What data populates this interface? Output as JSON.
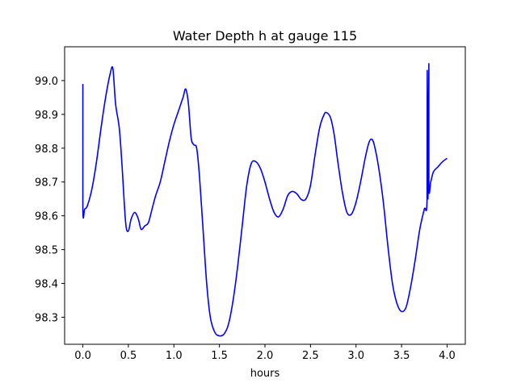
{
  "chart_data": {
    "type": "line",
    "title": "Water Depth h at gauge 115",
    "xlabel": "hours",
    "ylabel": "",
    "xlim": [
      -0.2,
      4.2
    ],
    "ylim": [
      98.22,
      99.1
    ],
    "xticks": [
      0.0,
      0.5,
      1.0,
      1.5,
      2.0,
      2.5,
      3.0,
      3.5,
      4.0
    ],
    "xtick_labels": [
      "0.0",
      "0.5",
      "1.0",
      "1.5",
      "2.0",
      "2.5",
      "3.0",
      "3.5",
      "4.0"
    ],
    "yticks": [
      98.3,
      98.4,
      98.5,
      98.6,
      98.7,
      98.8,
      98.9,
      99.0
    ],
    "ytick_labels": [
      "98.3",
      "98.4",
      "98.5",
      "98.6",
      "98.7",
      "98.8",
      "98.9",
      "99.0"
    ],
    "grid": false,
    "series": [
      {
        "color": "#0000ff",
        "x": [
          0.0,
          0.0,
          0.02,
          0.05,
          0.1,
          0.15,
          0.2,
          0.25,
          0.3,
          0.33,
          0.36,
          0.4,
          0.43,
          0.47,
          0.5,
          0.53,
          0.57,
          0.61,
          0.64,
          0.68,
          0.72,
          0.76,
          0.8,
          0.85,
          0.9,
          0.95,
          1.0,
          1.05,
          1.1,
          1.13,
          1.16,
          1.19,
          1.22,
          1.25,
          1.28,
          1.32,
          1.36,
          1.4,
          1.45,
          1.5,
          1.55,
          1.6,
          1.65,
          1.7,
          1.75,
          1.8,
          1.85,
          1.9,
          1.95,
          2.0,
          2.05,
          2.1,
          2.15,
          2.2,
          2.25,
          2.3,
          2.35,
          2.4,
          2.45,
          2.5,
          2.55,
          2.6,
          2.65,
          2.68,
          2.72,
          2.76,
          2.8,
          2.85,
          2.9,
          2.95,
          3.0,
          3.05,
          3.1,
          3.14,
          3.17,
          3.2,
          3.25,
          3.3,
          3.35,
          3.4,
          3.45,
          3.5,
          3.55,
          3.6,
          3.65,
          3.7,
          3.75,
          3.78,
          3.782,
          3.79,
          3.8,
          3.8,
          3.82,
          3.85,
          3.9,
          3.95,
          4.0
        ],
        "y": [
          98.99,
          98.62,
          98.62,
          98.63,
          98.68,
          98.76,
          98.86,
          98.95,
          99.02,
          99.035,
          98.93,
          98.86,
          98.75,
          98.58,
          98.555,
          98.59,
          98.61,
          98.59,
          98.56,
          98.57,
          98.58,
          98.62,
          98.66,
          98.7,
          98.76,
          98.82,
          98.87,
          98.91,
          98.95,
          98.975,
          98.93,
          98.83,
          98.81,
          98.8,
          98.72,
          98.56,
          98.4,
          98.3,
          98.255,
          98.245,
          98.25,
          98.28,
          98.35,
          98.45,
          98.57,
          98.69,
          98.755,
          98.76,
          98.74,
          98.7,
          98.65,
          98.61,
          98.597,
          98.62,
          98.66,
          98.672,
          98.665,
          98.648,
          98.65,
          98.69,
          98.78,
          98.86,
          98.9,
          98.905,
          98.89,
          98.84,
          98.76,
          98.67,
          98.61,
          98.605,
          98.64,
          98.7,
          98.77,
          98.815,
          98.827,
          98.81,
          98.74,
          98.64,
          98.51,
          98.4,
          98.34,
          98.317,
          98.33,
          98.39,
          98.47,
          98.56,
          98.62,
          98.65,
          99.03,
          98.65,
          99.05,
          98.69,
          98.7,
          98.73,
          98.745,
          98.76,
          98.77
        ]
      }
    ]
  }
}
